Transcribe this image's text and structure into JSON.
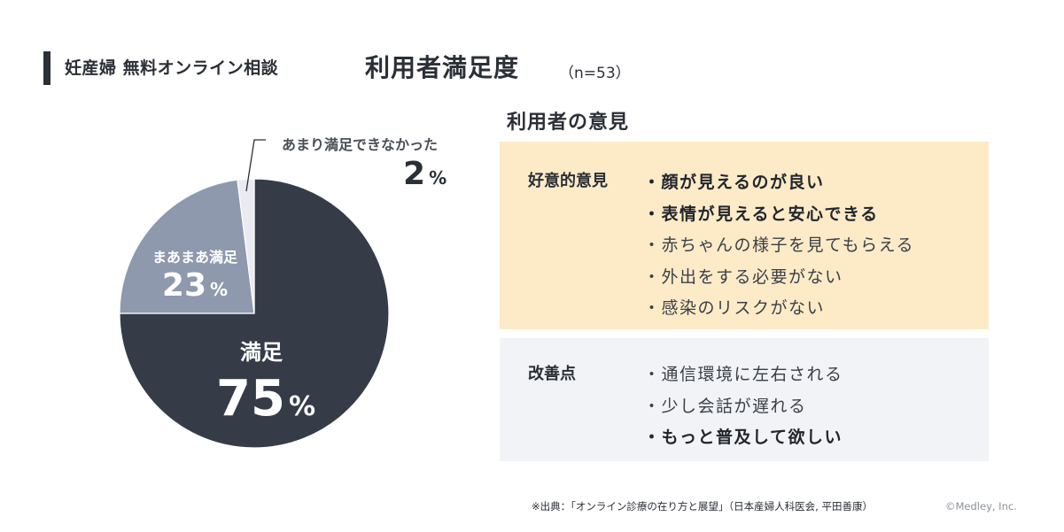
{
  "header": {
    "subtitle": "妊産婦 無料オンライン相談",
    "title": "利用者満足度",
    "sample": "（n=53）"
  },
  "chart_data": {
    "type": "pie",
    "slices": [
      {
        "name": "満足",
        "value": 75,
        "unit": "%",
        "color": "#353c48"
      },
      {
        "name": "まあまあ満足",
        "value": 23,
        "unit": "%",
        "color": "#8e99ad"
      },
      {
        "name": "あまり満足できなかった",
        "value": 2,
        "unit": "%",
        "color": "#e9ebf0"
      }
    ]
  },
  "opinions": {
    "heading": "利用者の意見",
    "positive": {
      "label": "好意的意見",
      "color": "#fdebc8",
      "items": [
        {
          "text": "顔が見えるのが良い",
          "bold": true
        },
        {
          "text": "表情が見えると安心できる",
          "bold": true
        },
        {
          "text": "赤ちゃんの様子を見てもらえる",
          "bold": false
        },
        {
          "text": "外出をする必要がない",
          "bold": false
        },
        {
          "text": "感染のリスクがない",
          "bold": false
        }
      ]
    },
    "improvement": {
      "label": "改善点",
      "color": "#f1f3f6",
      "items": [
        {
          "text": "通信環境に左右される",
          "bold": false
        },
        {
          "text": "少し会話が遅れる",
          "bold": false
        },
        {
          "text": "もっと普及して欲しい",
          "bold": true
        }
      ]
    }
  },
  "footer": {
    "source": "※出典：「オンライン診療の在り方と展望」（日本産婦人科医会, 平田善康）",
    "copyright": "©Medley, Inc."
  }
}
